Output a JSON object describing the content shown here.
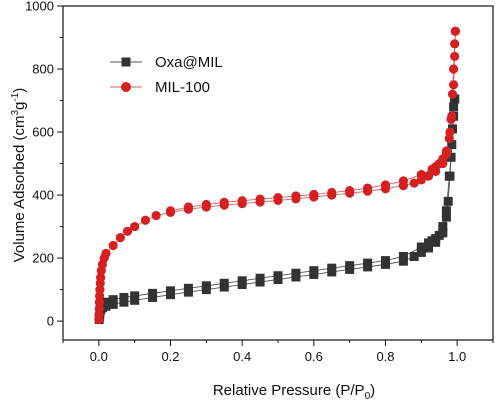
{
  "chart_data": {
    "type": "scatter",
    "xlabel": "Relative Pressure (P/P",
    "xlabel_sub": "0",
    "xlabel_close": ")",
    "ylabel": "Volume Adsorbed (cm",
    "ylabel_sup1": "3",
    "ylabel_mid": "g",
    "ylabel_sup2": "-1",
    "ylabel_close": ")",
    "xlim": [
      -0.1,
      1.1
    ],
    "ylim": [
      -60,
      1000
    ],
    "xticks": [
      0.0,
      0.2,
      0.4,
      0.6,
      0.8,
      1.0
    ],
    "xtick_labels": [
      "0.0",
      "0.2",
      "0.4",
      "0.6",
      "0.8",
      "1.0"
    ],
    "yticks": [
      0,
      200,
      400,
      600,
      800,
      1000
    ],
    "ytick_labels": [
      "0",
      "200",
      "400",
      "600",
      "800",
      "1000"
    ],
    "legend": "top-left",
    "series": [
      {
        "name": "Oxa@MIL",
        "marker": "square",
        "color": "#333333",
        "line_color": "#555555",
        "adsorption": [
          [
            0.001,
            5
          ],
          [
            0.002,
            15
          ],
          [
            0.003,
            25
          ],
          [
            0.005,
            35
          ],
          [
            0.01,
            42
          ],
          [
            0.02,
            47
          ],
          [
            0.04,
            53
          ],
          [
            0.07,
            60
          ],
          [
            0.1,
            66
          ],
          [
            0.15,
            75
          ],
          [
            0.2,
            84
          ],
          [
            0.25,
            92
          ],
          [
            0.3,
            100
          ],
          [
            0.35,
            108
          ],
          [
            0.4,
            116
          ],
          [
            0.45,
            124
          ],
          [
            0.5,
            132
          ],
          [
            0.55,
            140
          ],
          [
            0.6,
            148
          ],
          [
            0.65,
            156
          ],
          [
            0.7,
            164
          ],
          [
            0.75,
            172
          ],
          [
            0.8,
            180
          ],
          [
            0.85,
            190
          ],
          [
            0.88,
            205
          ],
          [
            0.9,
            218
          ],
          [
            0.92,
            232
          ],
          [
            0.94,
            250
          ],
          [
            0.96,
            280
          ],
          [
            0.97,
            330
          ],
          [
            0.975,
            380
          ],
          [
            0.98,
            460
          ],
          [
            0.985,
            560
          ],
          [
            0.99,
            650
          ],
          [
            0.993,
            705
          ]
        ],
        "desorption": [
          [
            0.993,
            705
          ],
          [
            0.99,
            680
          ],
          [
            0.987,
            610
          ],
          [
            0.983,
            520
          ],
          [
            0.978,
            460
          ],
          [
            0.97,
            350
          ],
          [
            0.96,
            300
          ],
          [
            0.95,
            272
          ],
          [
            0.94,
            262
          ],
          [
            0.93,
            255
          ],
          [
            0.92,
            248
          ],
          [
            0.9,
            235
          ],
          [
            0.85,
            205
          ],
          [
            0.8,
            192
          ],
          [
            0.75,
            184
          ],
          [
            0.7,
            176
          ],
          [
            0.65,
            168
          ],
          [
            0.6,
            160
          ],
          [
            0.55,
            152
          ],
          [
            0.5,
            144
          ],
          [
            0.45,
            136
          ],
          [
            0.4,
            128
          ],
          [
            0.35,
            120
          ],
          [
            0.3,
            112
          ],
          [
            0.25,
            104
          ],
          [
            0.2,
            96
          ],
          [
            0.15,
            88
          ],
          [
            0.1,
            80
          ],
          [
            0.07,
            75
          ],
          [
            0.04,
            68
          ],
          [
            0.02,
            60
          ]
        ]
      },
      {
        "name": "MIL-100",
        "marker": "circle",
        "color": "#d42020",
        "line_color": "#d46060",
        "adsorption": [
          [
            0.0,
            5
          ],
          [
            0.0005,
            20
          ],
          [
            0.001,
            40
          ],
          [
            0.0015,
            60
          ],
          [
            0.002,
            80
          ],
          [
            0.003,
            100
          ],
          [
            0.004,
            120
          ],
          [
            0.005,
            138
          ],
          [
            0.007,
            160
          ],
          [
            0.01,
            180
          ],
          [
            0.015,
            200
          ],
          [
            0.02,
            215
          ],
          [
            0.04,
            240
          ],
          [
            0.06,
            265
          ],
          [
            0.08,
            285
          ],
          [
            0.1,
            300
          ],
          [
            0.13,
            320
          ],
          [
            0.16,
            335
          ],
          [
            0.2,
            345
          ],
          [
            0.25,
            355
          ],
          [
            0.3,
            362
          ],
          [
            0.35,
            368
          ],
          [
            0.4,
            373
          ],
          [
            0.45,
            378
          ],
          [
            0.5,
            383
          ],
          [
            0.55,
            388
          ],
          [
            0.6,
            394
          ],
          [
            0.65,
            400
          ],
          [
            0.7,
            406
          ],
          [
            0.75,
            412
          ],
          [
            0.8,
            420
          ],
          [
            0.85,
            430
          ],
          [
            0.88,
            438
          ],
          [
            0.9,
            448
          ],
          [
            0.92,
            460
          ],
          [
            0.94,
            475
          ],
          [
            0.96,
            500
          ],
          [
            0.97,
            530
          ],
          [
            0.98,
            600
          ],
          [
            0.985,
            650
          ],
          [
            0.99,
            750
          ],
          [
            0.993,
            840
          ],
          [
            0.995,
            920
          ]
        ],
        "desorption": [
          [
            0.995,
            920
          ],
          [
            0.993,
            880
          ],
          [
            0.99,
            800
          ],
          [
            0.987,
            720
          ],
          [
            0.983,
            640
          ],
          [
            0.978,
            580
          ],
          [
            0.97,
            540
          ],
          [
            0.96,
            515
          ],
          [
            0.95,
            500
          ],
          [
            0.94,
            490
          ],
          [
            0.93,
            482
          ],
          [
            0.9,
            465
          ],
          [
            0.85,
            445
          ],
          [
            0.8,
            432
          ],
          [
            0.75,
            422
          ],
          [
            0.7,
            414
          ],
          [
            0.65,
            408
          ],
          [
            0.6,
            402
          ],
          [
            0.55,
            397
          ],
          [
            0.5,
            392
          ],
          [
            0.45,
            387
          ],
          [
            0.4,
            382
          ],
          [
            0.35,
            377
          ],
          [
            0.3,
            370
          ],
          [
            0.25,
            362
          ],
          [
            0.2,
            350
          ]
        ]
      }
    ]
  }
}
